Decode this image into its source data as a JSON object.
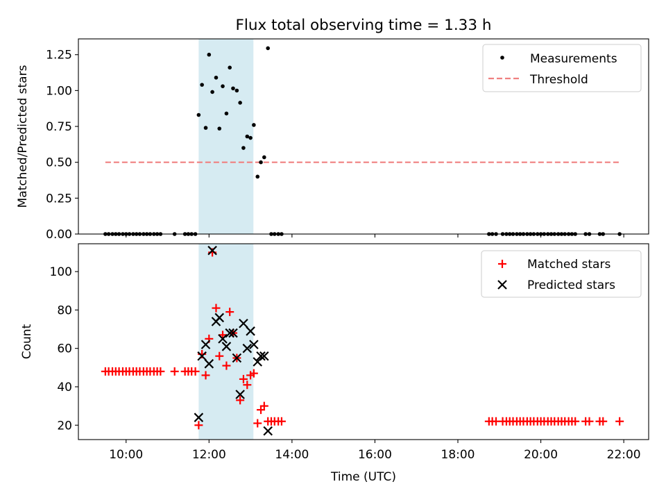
{
  "figure_title": "Flux total observing time = 1.33 h",
  "colors": {
    "shade": "#add8e6",
    "measurement": "#000000",
    "threshold": "#f08080",
    "matched": "#ff0000",
    "predicted": "#000000"
  },
  "chart_data": [
    {
      "type": "scatter",
      "panel": "top",
      "title": "Flux total observing time = 1.33 h",
      "ylabel": "Matched/Predicted stars",
      "xlabel": "",
      "xlim": [
        8.85,
        22.6
      ],
      "ylim": [
        0.0,
        1.36
      ],
      "yticks": [
        0.0,
        0.25,
        0.5,
        0.75,
        1.0,
        1.25
      ],
      "ytick_labels": [
        "0.00",
        "0.25",
        "0.50",
        "0.75",
        "1.00",
        "1.25"
      ],
      "xticks": [
        10,
        12,
        14,
        16,
        18,
        20,
        22
      ],
      "shaded_span": [
        11.75,
        13.07
      ],
      "legend": {
        "position": "upper right",
        "entries": [
          "Measurements",
          "Threshold"
        ]
      },
      "threshold": {
        "name": "Threshold",
        "y": 0.5,
        "x_range": [
          9.5,
          21.9
        ]
      },
      "series": [
        {
          "name": "Measurements",
          "points": [
            [
              9.5,
              0
            ],
            [
              9.58,
              0
            ],
            [
              9.67,
              0
            ],
            [
              9.75,
              0
            ],
            [
              9.83,
              0
            ],
            [
              9.92,
              0
            ],
            [
              10.0,
              0
            ],
            [
              10.08,
              0
            ],
            [
              10.17,
              0
            ],
            [
              10.25,
              0
            ],
            [
              10.33,
              0
            ],
            [
              10.42,
              0
            ],
            [
              10.5,
              0
            ],
            [
              10.58,
              0
            ],
            [
              10.67,
              0
            ],
            [
              10.75,
              0
            ],
            [
              10.83,
              0
            ],
            [
              11.17,
              0
            ],
            [
              11.42,
              0
            ],
            [
              11.5,
              0
            ],
            [
              11.58,
              0
            ],
            [
              11.67,
              0
            ],
            [
              11.75,
              0.83
            ],
            [
              11.83,
              1.04
            ],
            [
              11.92,
              0.74
            ],
            [
              12.0,
              1.25
            ],
            [
              12.08,
              0.99
            ],
            [
              12.17,
              1.09
            ],
            [
              12.25,
              0.735
            ],
            [
              12.33,
              1.03
            ],
            [
              12.42,
              0.84
            ],
            [
              12.5,
              1.16
            ],
            [
              12.58,
              1.015
            ],
            [
              12.67,
              1.0
            ],
            [
              12.75,
              0.915
            ],
            [
              12.83,
              0.6
            ],
            [
              12.92,
              0.68
            ],
            [
              13.0,
              0.67
            ],
            [
              13.08,
              0.76
            ],
            [
              13.17,
              0.4
            ],
            [
              13.25,
              0.5
            ],
            [
              13.33,
              0.535
            ],
            [
              13.42,
              1.295
            ],
            [
              13.5,
              0
            ],
            [
              13.58,
              0
            ],
            [
              13.67,
              0
            ],
            [
              13.75,
              0
            ],
            [
              18.75,
              0
            ],
            [
              18.83,
              0
            ],
            [
              18.92,
              0
            ],
            [
              19.08,
              0
            ],
            [
              19.17,
              0
            ],
            [
              19.25,
              0
            ],
            [
              19.33,
              0
            ],
            [
              19.42,
              0
            ],
            [
              19.5,
              0
            ],
            [
              19.58,
              0
            ],
            [
              19.67,
              0
            ],
            [
              19.75,
              0
            ],
            [
              19.83,
              0
            ],
            [
              19.92,
              0
            ],
            [
              20.0,
              0
            ],
            [
              20.08,
              0
            ],
            [
              20.17,
              0
            ],
            [
              20.25,
              0
            ],
            [
              20.33,
              0
            ],
            [
              20.42,
              0
            ],
            [
              20.5,
              0
            ],
            [
              20.58,
              0
            ],
            [
              20.67,
              0
            ],
            [
              20.75,
              0
            ],
            [
              20.83,
              0
            ],
            [
              21.08,
              0
            ],
            [
              21.17,
              0
            ],
            [
              21.42,
              0
            ],
            [
              21.5,
              0
            ],
            [
              21.9,
              0
            ]
          ]
        }
      ]
    },
    {
      "type": "scatter",
      "panel": "bottom",
      "ylabel": "Count",
      "xlabel": "Time (UTC)",
      "xlim": [
        8.85,
        22.6
      ],
      "ylim": [
        12.5,
        114.5
      ],
      "yticks": [
        20,
        40,
        60,
        80,
        100
      ],
      "ytick_labels": [
        "20",
        "40",
        "60",
        "80",
        "100"
      ],
      "xticks": [
        10,
        12,
        14,
        16,
        18,
        20,
        22
      ],
      "xtick_labels": [
        "10:00",
        "12:00",
        "14:00",
        "16:00",
        "18:00",
        "20:00",
        "22:00"
      ],
      "shaded_span": [
        11.75,
        13.07
      ],
      "legend": {
        "position": "upper right",
        "entries": [
          "Matched stars",
          "Predicted stars"
        ]
      },
      "series": [
        {
          "name": "Matched stars",
          "marker": "plus",
          "points": [
            [
              9.5,
              48
            ],
            [
              9.58,
              48
            ],
            [
              9.67,
              48
            ],
            [
              9.75,
              48
            ],
            [
              9.83,
              48
            ],
            [
              9.92,
              48
            ],
            [
              10.0,
              48
            ],
            [
              10.08,
              48
            ],
            [
              10.17,
              48
            ],
            [
              10.25,
              48
            ],
            [
              10.33,
              48
            ],
            [
              10.42,
              48
            ],
            [
              10.5,
              48
            ],
            [
              10.58,
              48
            ],
            [
              10.67,
              48
            ],
            [
              10.75,
              48
            ],
            [
              10.83,
              48
            ],
            [
              11.17,
              48
            ],
            [
              11.42,
              48
            ],
            [
              11.5,
              48
            ],
            [
              11.58,
              48
            ],
            [
              11.67,
              48
            ],
            [
              11.75,
              20
            ],
            [
              11.83,
              57
            ],
            [
              11.92,
              46
            ],
            [
              12.0,
              65
            ],
            [
              12.08,
              110
            ],
            [
              12.17,
              81
            ],
            [
              12.25,
              56
            ],
            [
              12.33,
              67
            ],
            [
              12.42,
              51
            ],
            [
              12.5,
              79
            ],
            [
              12.58,
              68
            ],
            [
              12.67,
              55
            ],
            [
              12.75,
              33
            ],
            [
              12.83,
              44
            ],
            [
              12.92,
              41
            ],
            [
              13.0,
              46
            ],
            [
              13.08,
              47
            ],
            [
              13.17,
              21
            ],
            [
              13.25,
              28
            ],
            [
              13.33,
              30
            ],
            [
              13.42,
              22
            ],
            [
              13.5,
              22
            ],
            [
              13.58,
              22
            ],
            [
              13.67,
              22
            ],
            [
              13.75,
              22
            ],
            [
              18.75,
              22
            ],
            [
              18.83,
              22
            ],
            [
              18.92,
              22
            ],
            [
              19.08,
              22
            ],
            [
              19.17,
              22
            ],
            [
              19.25,
              22
            ],
            [
              19.33,
              22
            ],
            [
              19.42,
              22
            ],
            [
              19.5,
              22
            ],
            [
              19.58,
              22
            ],
            [
              19.67,
              22
            ],
            [
              19.75,
              22
            ],
            [
              19.83,
              22
            ],
            [
              19.92,
              22
            ],
            [
              20.0,
              22
            ],
            [
              20.08,
              22
            ],
            [
              20.17,
              22
            ],
            [
              20.25,
              22
            ],
            [
              20.33,
              22
            ],
            [
              20.42,
              22
            ],
            [
              20.5,
              22
            ],
            [
              20.58,
              22
            ],
            [
              20.67,
              22
            ],
            [
              20.75,
              22
            ],
            [
              20.83,
              22
            ],
            [
              21.08,
              22
            ],
            [
              21.17,
              22
            ],
            [
              21.42,
              22
            ],
            [
              21.5,
              22
            ],
            [
              21.9,
              22
            ]
          ]
        },
        {
          "name": "Predicted stars",
          "marker": "x",
          "points": [
            [
              11.75,
              24
            ],
            [
              11.83,
              56
            ],
            [
              11.92,
              62
            ],
            [
              12.0,
              52
            ],
            [
              12.08,
              111
            ],
            [
              12.17,
              74
            ],
            [
              12.25,
              76
            ],
            [
              12.33,
              65
            ],
            [
              12.42,
              61
            ],
            [
              12.5,
              68
            ],
            [
              12.58,
              68
            ],
            [
              12.67,
              55
            ],
            [
              12.75,
              36
            ],
            [
              12.83,
              73
            ],
            [
              12.92,
              60
            ],
            [
              13.0,
              69
            ],
            [
              13.08,
              62
            ],
            [
              13.17,
              53
            ],
            [
              13.25,
              56
            ],
            [
              13.33,
              56
            ],
            [
              13.42,
              17
            ]
          ]
        }
      ]
    }
  ]
}
